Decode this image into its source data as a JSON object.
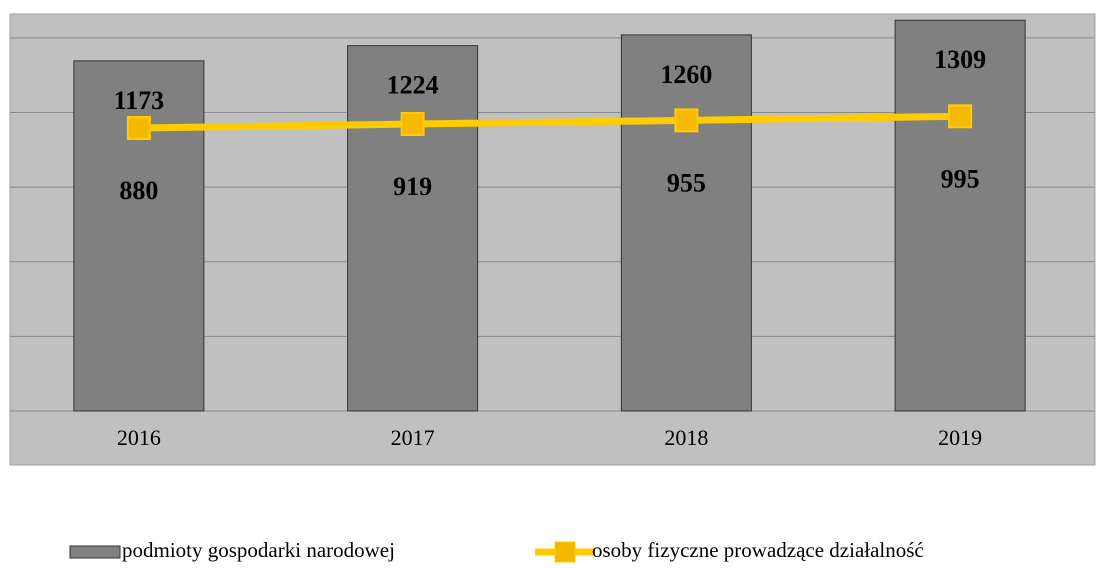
{
  "chart_data": {
    "type": "bar_line",
    "categories": [
      "2016",
      "2017",
      "2018",
      "2019"
    ],
    "series": [
      {
        "name": "podmioty gospodarki narodowej",
        "type": "bar",
        "color": "#808080",
        "values": [
          1173,
          1224,
          1260,
          1309
        ]
      },
      {
        "name": "osoby fizyczne prowadzące działalność",
        "type": "line",
        "axis": "y2",
        "color": "#ffcc00",
        "values": [
          880,
          919,
          955,
          995
        ]
      }
    ],
    "ylim": [
      0,
      1330
    ],
    "yticks": [
      250,
      500,
      750,
      1000,
      1250
    ],
    "y2lim": [
      -1900,
      2000
    ],
    "grid": true,
    "legend": "bottom"
  }
}
